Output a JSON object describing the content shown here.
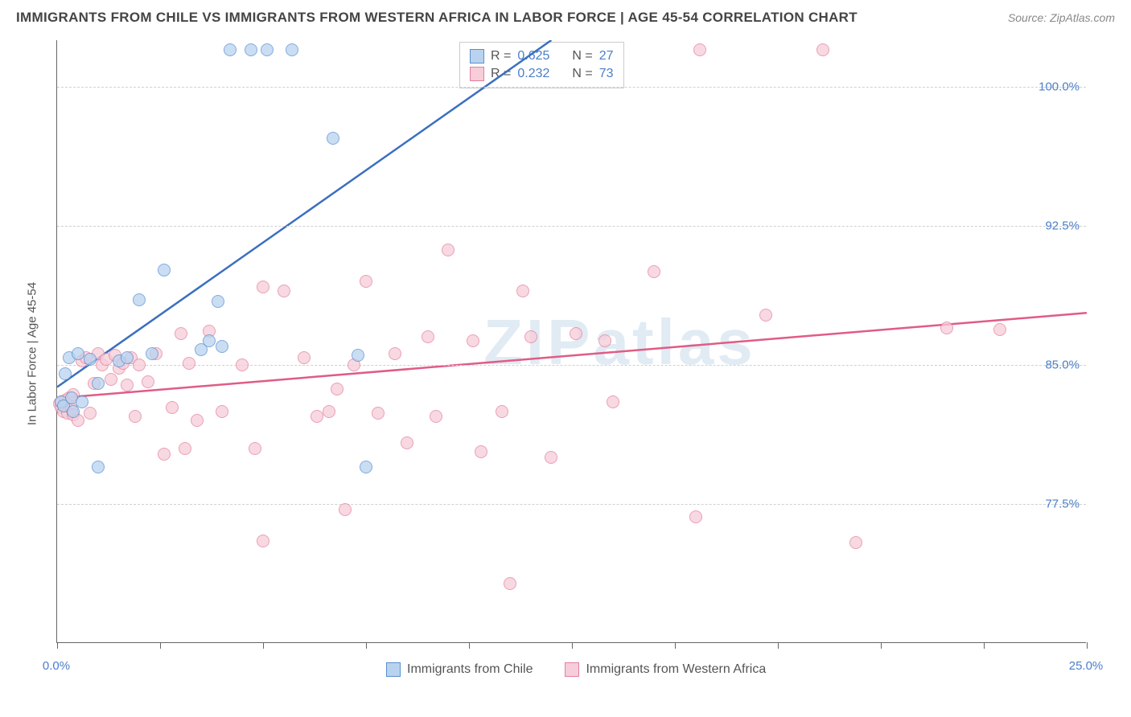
{
  "title": "IMMIGRANTS FROM CHILE VS IMMIGRANTS FROM WESTERN AFRICA IN LABOR FORCE | AGE 45-54 CORRELATION CHART",
  "source": "Source: ZipAtlas.com",
  "watermark": "ZIPatlas",
  "y_axis_title": "In Labor Force | Age 45-54",
  "chart": {
    "type": "scatter",
    "xlim": [
      0,
      25
    ],
    "ylim": [
      70,
      102.5
    ],
    "x_ticks": [
      0,
      2.5,
      5,
      7.5,
      10,
      12.5,
      15,
      17.5,
      20,
      22.5,
      25
    ],
    "x_tick_labels": {
      "0": "0.0%",
      "25": "25.0%"
    },
    "y_ticks": [
      77.5,
      85,
      92.5,
      100
    ],
    "y_tick_labels": [
      "77.5%",
      "85.0%",
      "92.5%",
      "100.0%"
    ],
    "background_color": "#ffffff",
    "grid_color": "#d0d0d0",
    "axis_color": "#666666",
    "tick_label_color": "#4a7ec9",
    "marker_radius": 8,
    "marker_opacity": 0.75
  },
  "series": [
    {
      "name": "Immigrants from Chile",
      "color_fill": "#b9d3ef",
      "color_stroke": "#5a8ed0",
      "R": "0.625",
      "N": "27",
      "trend": {
        "x1": 0.0,
        "y1": 83.8,
        "x2": 12.0,
        "y2": 102.5,
        "width": 2.5,
        "color": "#3a6fc0"
      },
      "points": [
        [
          0.1,
          83.0
        ],
        [
          0.15,
          82.8
        ],
        [
          0.2,
          84.5
        ],
        [
          0.3,
          85.4
        ],
        [
          0.35,
          83.2
        ],
        [
          0.4,
          82.5
        ],
        [
          0.5,
          85.6
        ],
        [
          0.6,
          83.0
        ],
        [
          0.8,
          85.3
        ],
        [
          1.0,
          84.0
        ],
        [
          1.0,
          79.5
        ],
        [
          1.5,
          85.2
        ],
        [
          1.7,
          85.4
        ],
        [
          2.0,
          88.5
        ],
        [
          2.3,
          85.6
        ],
        [
          2.6,
          90.1
        ],
        [
          3.5,
          85.8
        ],
        [
          3.7,
          86.3
        ],
        [
          3.9,
          88.4
        ],
        [
          4.0,
          86.0
        ],
        [
          4.2,
          102.0
        ],
        [
          4.7,
          102.0
        ],
        [
          5.1,
          102.0
        ],
        [
          5.7,
          102.0
        ],
        [
          6.7,
          97.2
        ],
        [
          7.3,
          85.5
        ],
        [
          7.5,
          79.5
        ]
      ]
    },
    {
      "name": "Immigrants from Western Africa",
      "color_fill": "#f6cdd8",
      "color_stroke": "#e37f9d",
      "R": "0.232",
      "N": "73",
      "trend": {
        "x1": 0.0,
        "y1": 83.2,
        "x2": 25.0,
        "y2": 87.8,
        "width": 2.5,
        "color": "#e05c85"
      },
      "points": [
        [
          0.05,
          82.9
        ],
        [
          0.1,
          82.7
        ],
        [
          0.1,
          83.0
        ],
        [
          0.15,
          82.5
        ],
        [
          0.2,
          82.8
        ],
        [
          0.2,
          83.1
        ],
        [
          0.25,
          82.4
        ],
        [
          0.3,
          83.2
        ],
        [
          0.35,
          82.6
        ],
        [
          0.4,
          82.3
        ],
        [
          0.4,
          83.4
        ],
        [
          0.5,
          82.0
        ],
        [
          0.6,
          85.2
        ],
        [
          0.7,
          85.4
        ],
        [
          0.8,
          82.4
        ],
        [
          0.9,
          84.0
        ],
        [
          1.0,
          85.6
        ],
        [
          1.1,
          85.0
        ],
        [
          1.2,
          85.3
        ],
        [
          1.3,
          84.2
        ],
        [
          1.4,
          85.5
        ],
        [
          1.5,
          84.8
        ],
        [
          1.6,
          85.1
        ],
        [
          1.7,
          83.9
        ],
        [
          1.8,
          85.4
        ],
        [
          1.9,
          82.2
        ],
        [
          2.0,
          85.0
        ],
        [
          2.2,
          84.1
        ],
        [
          2.4,
          85.6
        ],
        [
          2.6,
          80.2
        ],
        [
          2.8,
          82.7
        ],
        [
          3.0,
          86.7
        ],
        [
          3.1,
          80.5
        ],
        [
          3.2,
          85.1
        ],
        [
          3.4,
          82.0
        ],
        [
          3.7,
          86.8
        ],
        [
          4.0,
          82.5
        ],
        [
          4.5,
          85.0
        ],
        [
          4.8,
          80.5
        ],
        [
          5.0,
          75.5
        ],
        [
          5.0,
          89.2
        ],
        [
          5.5,
          89.0
        ],
        [
          6.0,
          85.4
        ],
        [
          6.3,
          82.2
        ],
        [
          6.6,
          82.5
        ],
        [
          6.8,
          83.7
        ],
        [
          7.0,
          77.2
        ],
        [
          7.2,
          85.0
        ],
        [
          7.5,
          89.5
        ],
        [
          7.8,
          82.4
        ],
        [
          8.2,
          85.6
        ],
        [
          8.5,
          80.8
        ],
        [
          9.0,
          86.5
        ],
        [
          9.2,
          82.2
        ],
        [
          9.5,
          91.2
        ],
        [
          10.1,
          86.3
        ],
        [
          10.3,
          80.3
        ],
        [
          10.8,
          82.5
        ],
        [
          11.0,
          73.2
        ],
        [
          11.3,
          89.0
        ],
        [
          11.5,
          86.5
        ],
        [
          12.0,
          80.0
        ],
        [
          12.6,
          86.7
        ],
        [
          13.3,
          86.3
        ],
        [
          13.5,
          83.0
        ],
        [
          14.5,
          90.0
        ],
        [
          15.5,
          76.8
        ],
        [
          15.6,
          102.0
        ],
        [
          17.2,
          87.7
        ],
        [
          18.6,
          102.0
        ],
        [
          19.4,
          75.4
        ],
        [
          21.6,
          87.0
        ],
        [
          22.9,
          86.9
        ]
      ]
    }
  ],
  "legend_stats": {
    "R_label": "R =",
    "N_label": "N ="
  },
  "bottom_legend_labels": [
    "Immigrants from Chile",
    "Immigrants from Western Africa"
  ]
}
